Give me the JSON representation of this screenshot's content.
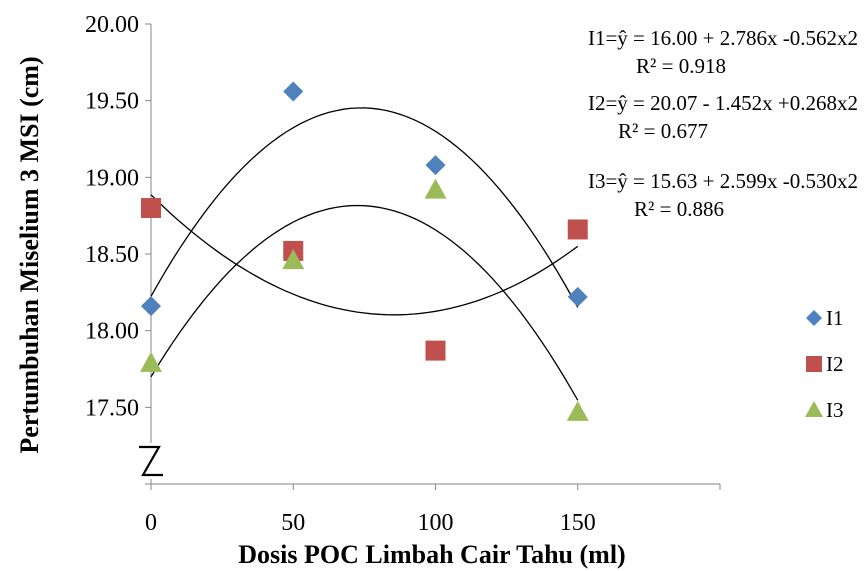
{
  "chart_data": {
    "type": "scatter",
    "xlabel": "Dosis POC Limbah Cair Tahu (ml)",
    "ylabel": "Pertumbuhan Miselium 3 MSI (cm)",
    "x_ticks": [
      "0",
      "50",
      "100",
      "150"
    ],
    "y_ticks": [
      "17.50",
      "18.00",
      "18.50",
      "19.00",
      "19.50",
      "20.00"
    ],
    "xlim": [
      0,
      200
    ],
    "ylim": [
      17.0,
      20.0
    ],
    "axis_break": true,
    "grid": false,
    "legend_position": "right",
    "x": [
      0,
      50,
      100,
      150
    ],
    "series": [
      {
        "name": "I1",
        "marker": "diamond",
        "color": "#4F81BD",
        "values": [
          18.16,
          19.56,
          19.08,
          18.22
        ],
        "trendline": {
          "a": 16.0,
          "b": 2.786,
          "c": -0.562
        },
        "equation": "I1=ŷ = 16.00 + 2.786x -0.562x2",
        "r2": "R² = 0.918"
      },
      {
        "name": "I2",
        "marker": "square",
        "color": "#C0504D",
        "values": [
          18.8,
          18.52,
          17.87,
          18.66
        ],
        "trendline": {
          "a": 20.07,
          "b": -1.452,
          "c": 0.268
        },
        "equation": "I2=ŷ  = 20.07 - 1.452x +0.268x2",
        "r2": "R² = 0.677"
      },
      {
        "name": "I3",
        "marker": "triangle",
        "color": "#9BBB59",
        "values": [
          17.79,
          18.46,
          18.92,
          17.47
        ],
        "trendline": {
          "a": 15.63,
          "b": 2.599,
          "c": -0.53
        },
        "equation": "I3=ŷ = 15.63 + 2.599x -0.530x2",
        "r2": "R² = 0.886"
      }
    ]
  }
}
